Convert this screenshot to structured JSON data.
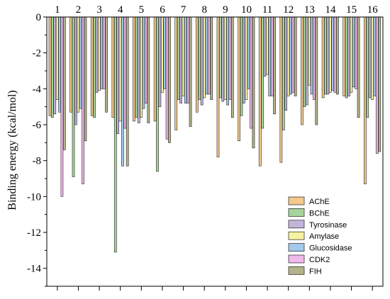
{
  "chart_data": {
    "type": "bar",
    "orientation": "vertical-downward",
    "x_axis_position": "top",
    "categories": [
      "1",
      "2",
      "3",
      "4",
      "5",
      "6",
      "7",
      "8",
      "9",
      "10",
      "11",
      "12",
      "13",
      "14",
      "15",
      "16"
    ],
    "ylabel": "Binding energy (kcal/mol)",
    "ylim": [
      -15,
      0
    ],
    "yticks": [
      0,
      -2,
      -4,
      -6,
      -8,
      -10,
      -12,
      -14
    ],
    "grid": false,
    "legend_position": "bottom-right",
    "series": [
      {
        "name": "AChE",
        "color": "#f4c98a",
        "values": [
          -5.5,
          -5.3,
          -5.5,
          -5.6,
          -5.8,
          -5.8,
          -6.3,
          -5.3,
          -7.8,
          -6.9,
          -8.3,
          -8.1,
          -6.0,
          -4.5,
          -4.4,
          -9.3
        ]
      },
      {
        "name": "BChE",
        "color": "#a6d49a",
        "values": [
          -5.6,
          -8.9,
          -5.6,
          -13.1,
          -5.6,
          -8.6,
          -4.6,
          -4.6,
          -4.5,
          -5.5,
          -6.2,
          -6.3,
          -5.0,
          -4.3,
          -4.5,
          -5.6
        ]
      },
      {
        "name": "Tyrosinase",
        "color": "#c1b5dc",
        "values": [
          -5.4,
          -6.0,
          -4.2,
          -6.5,
          -5.9,
          -5.0,
          -4.8,
          -4.9,
          -4.7,
          -4.8,
          -3.3,
          -5.2,
          -4.9,
          -4.3,
          -4.4,
          -4.5
        ]
      },
      {
        "name": "Amylase",
        "color": "#f5f2a0",
        "values": [
          -4.6,
          -5.3,
          -4.1,
          -5.8,
          -5.6,
          -4.2,
          -4.4,
          -4.5,
          -4.6,
          -4.6,
          -3.2,
          -4.4,
          -3.8,
          -4.2,
          -4.2,
          -4.6
        ]
      },
      {
        "name": "Glucosidase",
        "color": "#a2c8ec",
        "values": [
          -5.3,
          -5.1,
          -4.0,
          -8.3,
          -5.1,
          -4.0,
          -4.8,
          -4.3,
          -4.9,
          -4.0,
          -4.4,
          -4.3,
          -4.3,
          -4.1,
          -3.9,
          -4.4
        ]
      },
      {
        "name": "CDK2",
        "color": "#f1b8ec",
        "values": [
          -10.0,
          -9.3,
          -4.0,
          -6.2,
          -4.8,
          -6.8,
          -4.8,
          -4.3,
          -4.6,
          -6.2,
          -4.4,
          -4.2,
          -4.6,
          -4.2,
          -4.0,
          -7.6
        ]
      },
      {
        "name": "FIH",
        "color": "#b3b38a",
        "values": [
          -7.4,
          -6.9,
          -5.3,
          -8.3,
          -5.9,
          -7.0,
          -6.1,
          -4.6,
          -5.6,
          -7.3,
          -5.4,
          -4.4,
          -6.0,
          -4.3,
          -5.6,
          -7.5
        ]
      }
    ]
  }
}
